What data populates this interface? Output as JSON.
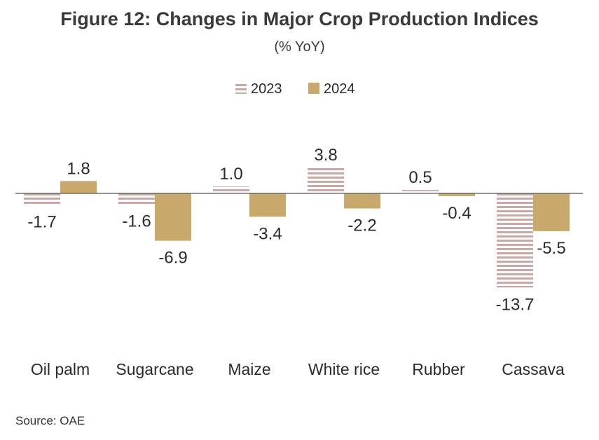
{
  "chart_data": {
    "type": "bar",
    "title": "Figure 12: Changes in Major Crop Production Indices",
    "subtitle": "(% YoY)",
    "categories": [
      "Oil palm",
      "Sugarcane",
      "Maize",
      "White rice",
      "Rubber",
      "Cassava"
    ],
    "series": [
      {
        "name": "2023",
        "values": [
          -1.7,
          -1.6,
          1.0,
          3.8,
          0.5,
          -13.7
        ],
        "color": "#c9a9a6",
        "pattern": "horizontal-stripes"
      },
      {
        "name": "2024",
        "values": [
          1.8,
          -6.9,
          -3.4,
          -2.2,
          -0.4,
          -5.5
        ],
        "color": "#c8a86b",
        "pattern": "solid"
      }
    ],
    "value_labels": [
      [
        "-1.7",
        "-1.6",
        "1.0",
        "3.8",
        "0.5",
        "-13.7"
      ],
      [
        "1.8",
        "-6.9",
        "-3.4",
        "-2.2",
        "-0.4",
        "-5.5"
      ]
    ],
    "ylim": [
      -16,
      8
    ],
    "grid": false,
    "legend_position": "top-center",
    "xlabel": "",
    "ylabel": ""
  },
  "source": "Source: OAE"
}
